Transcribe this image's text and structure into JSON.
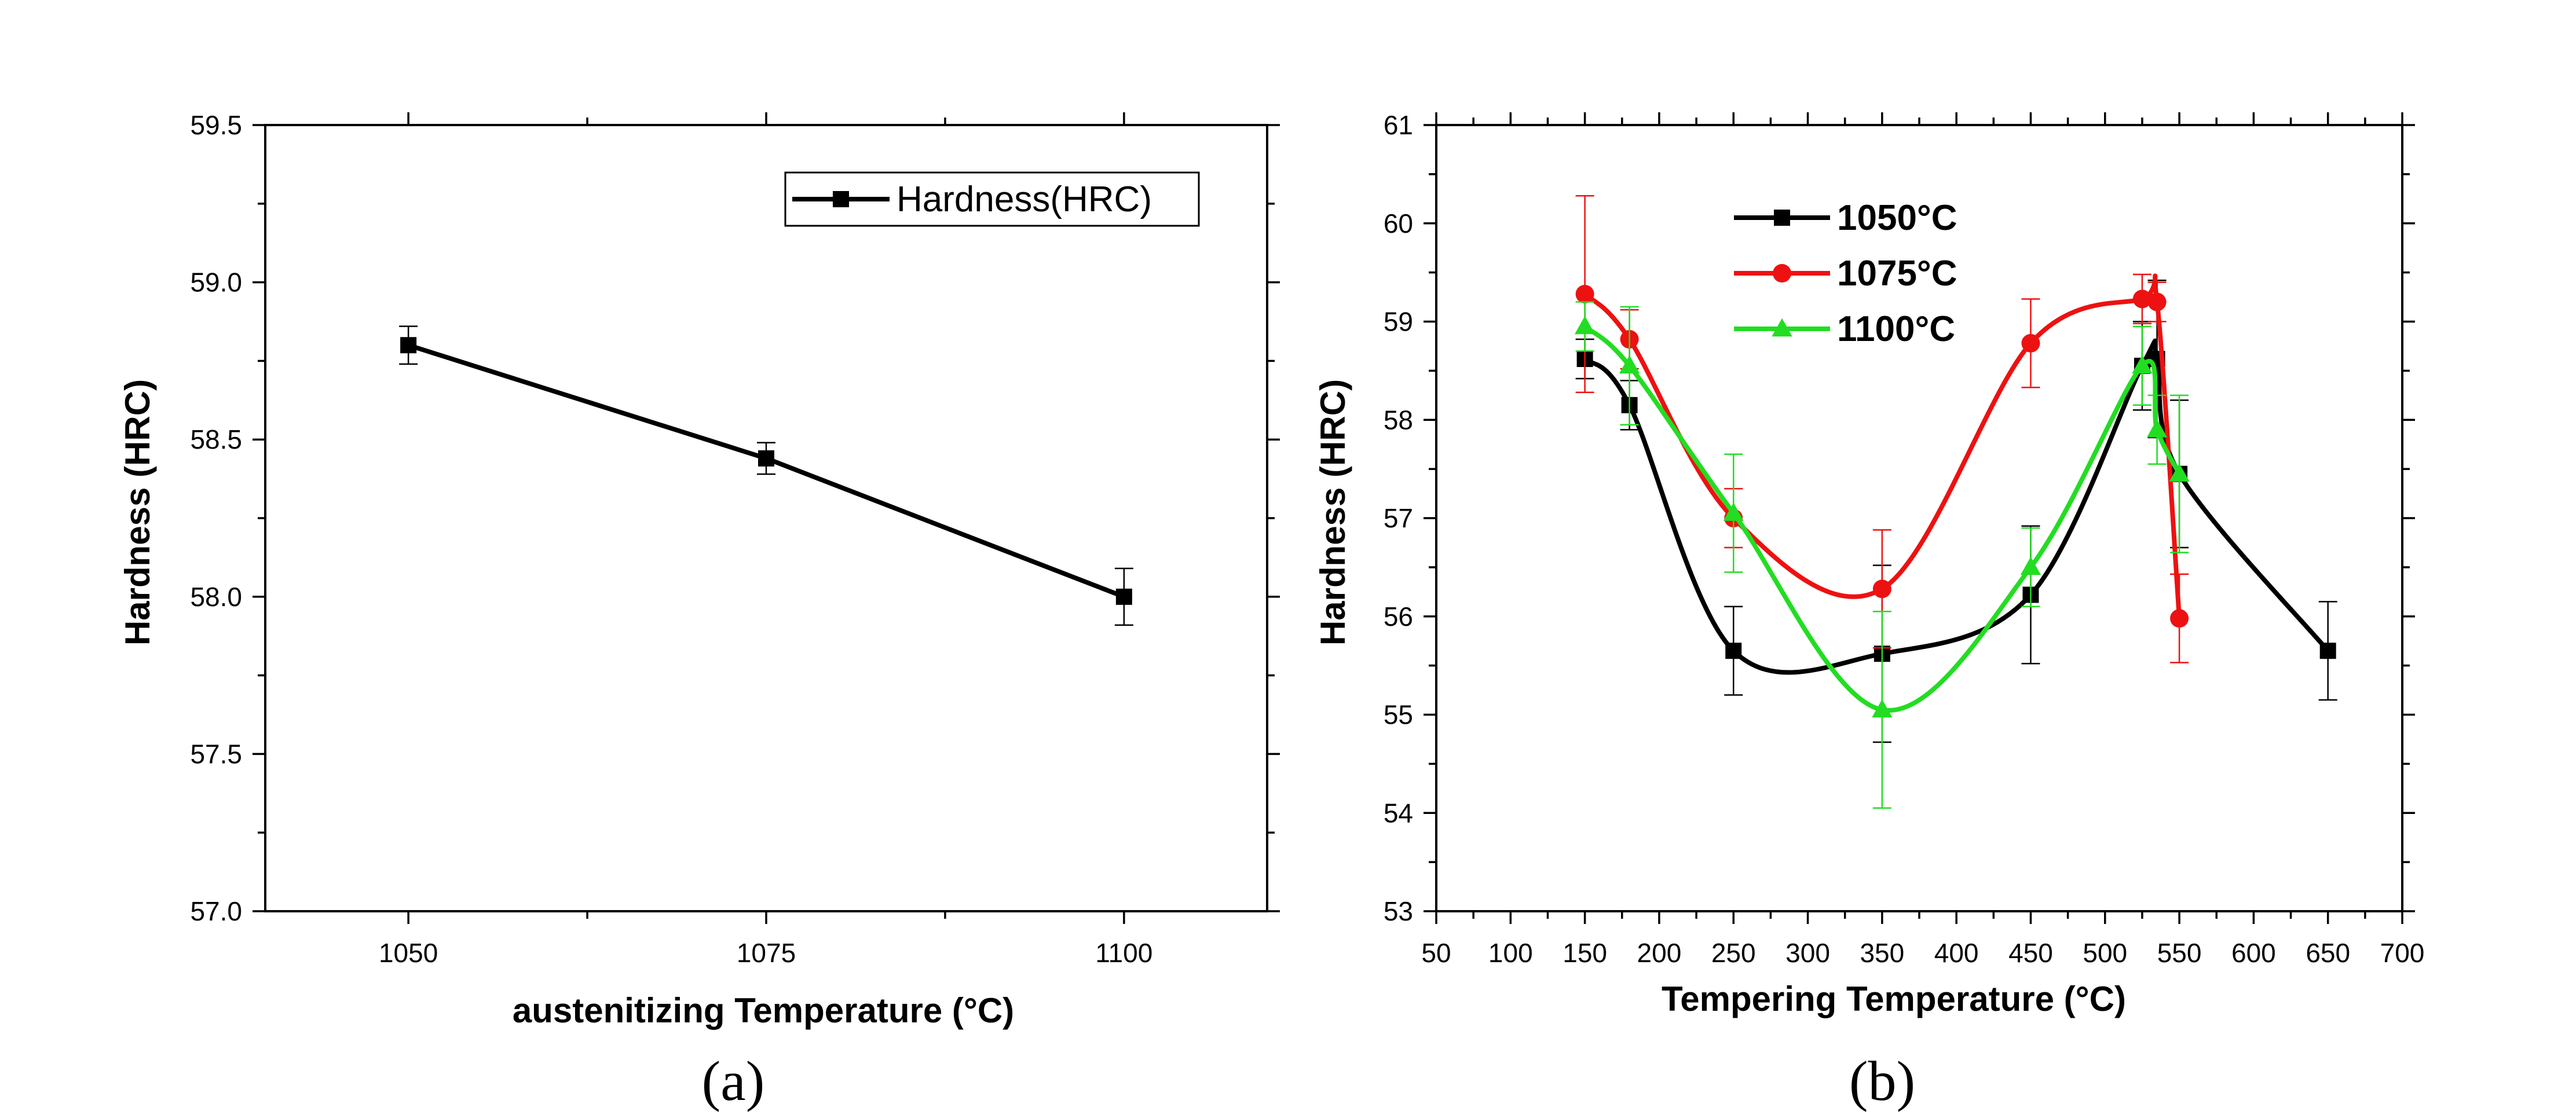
{
  "chart_data": [
    {
      "id": "a",
      "type": "line",
      "caption": "(a)",
      "xlabel": "austenitizing Temperature (°C)",
      "ylabel": "Hardness (HRC)",
      "xlim": [
        1040,
        1110
      ],
      "ylim": [
        57.0,
        59.5
      ],
      "xticks": [
        1050,
        1075,
        1100
      ],
      "xtick_labels": [
        "1050",
        "1075",
        "1100"
      ],
      "yticks": [
        57.0,
        57.5,
        58.0,
        58.5,
        59.0,
        59.5
      ],
      "ytick_labels": [
        "57.0",
        "57.5",
        "58.0",
        "58.5",
        "59.0",
        "59.5"
      ],
      "legend_position": "top-right",
      "series": [
        {
          "name": "Hardness(HRC)",
          "color": "#000000",
          "marker": "square",
          "x": [
            1050,
            1075,
            1100
          ],
          "y": [
            58.8,
            58.44,
            58.0
          ],
          "err": [
            0.06,
            0.05,
            0.09
          ]
        }
      ]
    },
    {
      "id": "b",
      "type": "line",
      "caption": "(b)",
      "xlabel": "Tempering Temperature (°C)",
      "ylabel": "Hardness (HRC)",
      "xlim": [
        50,
        700
      ],
      "ylim": [
        53,
        61
      ],
      "xticks": [
        50,
        100,
        150,
        200,
        250,
        300,
        350,
        400,
        450,
        500,
        550,
        600,
        650,
        700
      ],
      "xtick_labels": [
        "50",
        "100",
        "150",
        "200",
        "250",
        "300",
        "350",
        "400",
        "450",
        "500",
        "550",
        "600",
        "650",
        "700"
      ],
      "yticks": [
        53,
        54,
        55,
        56,
        57,
        58,
        59,
        60,
        61
      ],
      "ytick_labels": [
        "53",
        "54",
        "55",
        "56",
        "57",
        "58",
        "59",
        "60",
        "61"
      ],
      "legend_position": "top-left",
      "series": [
        {
          "name": "1050°C",
          "color": "#000000",
          "marker": "square",
          "x": [
            150,
            180,
            250,
            350,
            450,
            525,
            535,
            550,
            650
          ],
          "y": [
            58.62,
            58.15,
            55.65,
            55.62,
            56.22,
            58.55,
            58.62,
            57.45,
            55.65
          ],
          "err": [
            0.2,
            0.25,
            0.45,
            0.9,
            0.7,
            0.45,
            0.8,
            0.75,
            0.5
          ]
        },
        {
          "name": "1075°C",
          "color": "#ee1111",
          "marker": "circle",
          "x": [
            150,
            180,
            250,
            350,
            450,
            525,
            535,
            550
          ],
          "y": [
            59.28,
            58.82,
            57.0,
            56.28,
            58.78,
            59.23,
            59.2,
            55.98
          ],
          "err": [
            1.0,
            0.3,
            0.3,
            0.6,
            0.45,
            0.25,
            0.2,
            0.45
          ]
        },
        {
          "name": "1100°C",
          "color": "#22dd22",
          "marker": "triangle",
          "x": [
            150,
            180,
            250,
            350,
            450,
            525,
            535,
            550
          ],
          "y": [
            58.95,
            58.55,
            57.05,
            55.05,
            56.5,
            58.55,
            57.9,
            57.45
          ],
          "err": [
            0.25,
            0.6,
            0.6,
            1.0,
            0.4,
            0.4,
            0.35,
            0.8
          ]
        }
      ]
    }
  ]
}
